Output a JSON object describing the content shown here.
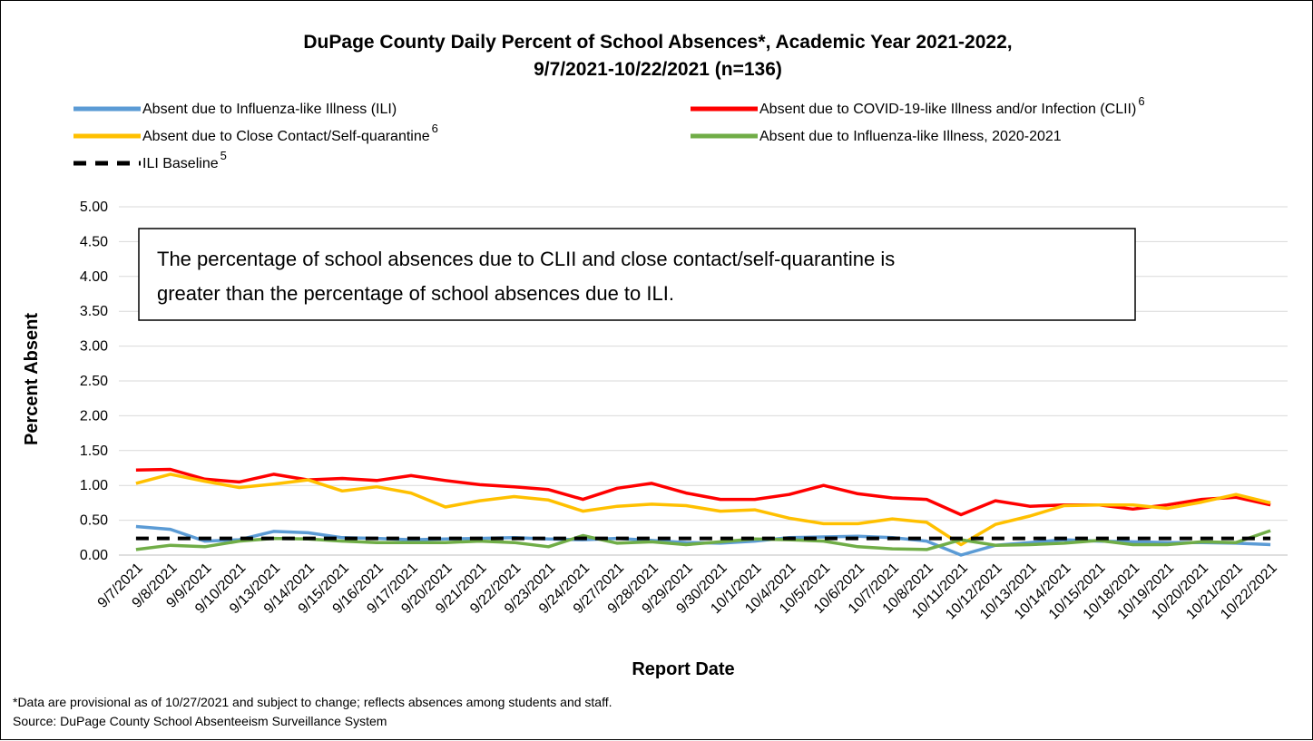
{
  "chart_data": {
    "type": "line",
    "title_line1": "DuPage County Daily Percent of School Absences*, Academic Year 2021-2022,",
    "title_line2": "9/7/2021-10/22/2021 (n=136)",
    "xlabel": "Report Date",
    "ylabel": "Percent Absent",
    "ylim": [
      0,
      5
    ],
    "yticks": [
      "0.00",
      "0.50",
      "1.00",
      "1.50",
      "2.00",
      "2.50",
      "3.00",
      "3.50",
      "4.00",
      "4.50",
      "5.00"
    ],
    "grid": true,
    "legend_position": "top",
    "categories": [
      "9/7/2021",
      "9/8/2021",
      "9/9/2021",
      "9/10/2021",
      "9/13/2021",
      "9/14/2021",
      "9/15/2021",
      "9/16/2021",
      "9/17/2021",
      "9/20/2021",
      "9/21/2021",
      "9/22/2021",
      "9/23/2021",
      "9/24/2021",
      "9/27/2021",
      "9/28/2021",
      "9/29/2021",
      "9/30/2021",
      "10/1/2021",
      "10/4/2021",
      "10/5/2021",
      "10/6/2021",
      "10/7/2021",
      "10/8/2021",
      "10/11/2021",
      "10/12/2021",
      "10/13/2021",
      "10/14/2021",
      "10/15/2021",
      "10/18/2021",
      "10/19/2021",
      "10/20/2021",
      "10/21/2021",
      "10/22/2021"
    ],
    "series": [
      {
        "name": "Absent due to Influenza-like Illness (ILI)",
        "sup": "",
        "color": "#5B9BD5",
        "dash": false,
        "values": [
          0.41,
          0.37,
          0.2,
          0.22,
          0.34,
          0.32,
          0.25,
          0.24,
          0.22,
          0.23,
          0.24,
          0.25,
          0.23,
          0.22,
          0.24,
          0.21,
          0.18,
          0.17,
          0.2,
          0.25,
          0.26,
          0.27,
          0.25,
          0.2,
          0.0,
          0.14,
          0.18,
          0.22,
          0.2,
          0.19,
          0.18,
          0.18,
          0.17,
          0.15
        ]
      },
      {
        "name": "Absent due to COVID-19-like Illness and/or Infection (CLII)",
        "sup": "6",
        "color": "#FF0000",
        "dash": false,
        "values": [
          1.22,
          1.23,
          1.09,
          1.05,
          1.16,
          1.08,
          1.1,
          1.07,
          1.14,
          1.07,
          1.01,
          0.98,
          0.94,
          0.8,
          0.96,
          1.03,
          0.89,
          0.8,
          0.8,
          0.87,
          1.0,
          0.88,
          0.82,
          0.8,
          0.58,
          0.78,
          0.7,
          0.72,
          0.72,
          0.66,
          0.72,
          0.8,
          0.83,
          0.72
        ]
      },
      {
        "name": "Absent due to Close Contact/Self-quarantine",
        "sup": "6",
        "color": "#FFC000",
        "dash": false,
        "values": [
          1.03,
          1.16,
          1.06,
          0.97,
          1.02,
          1.08,
          0.92,
          0.98,
          0.89,
          0.69,
          0.78,
          0.84,
          0.79,
          0.63,
          0.7,
          0.73,
          0.71,
          0.63,
          0.65,
          0.53,
          0.45,
          0.45,
          0.52,
          0.47,
          0.15,
          0.44,
          0.56,
          0.71,
          0.72,
          0.72,
          0.67,
          0.76,
          0.87,
          0.75
        ]
      },
      {
        "name": "Absent due to Influenza-like Illness, 2020-2021",
        "sup": "",
        "color": "#70AD47",
        "dash": false,
        "values": [
          0.08,
          0.14,
          0.12,
          0.2,
          0.24,
          0.23,
          0.2,
          0.18,
          0.18,
          0.18,
          0.2,
          0.18,
          0.12,
          0.28,
          0.17,
          0.19,
          0.15,
          0.19,
          0.23,
          0.22,
          0.2,
          0.12,
          0.09,
          0.08,
          0.22,
          0.14,
          0.15,
          0.17,
          0.21,
          0.15,
          0.15,
          0.19,
          0.18,
          0.35
        ]
      },
      {
        "name": "ILI Baseline",
        "sup": "5",
        "color": "#000000",
        "dash": true,
        "values": [
          0.24,
          0.24,
          0.24,
          0.24,
          0.24,
          0.24,
          0.24,
          0.24,
          0.24,
          0.24,
          0.24,
          0.24,
          0.24,
          0.24,
          0.24,
          0.24,
          0.24,
          0.24,
          0.24,
          0.24,
          0.24,
          0.24,
          0.24,
          0.24,
          0.24,
          0.24,
          0.24,
          0.24,
          0.24,
          0.24,
          0.24,
          0.24,
          0.24,
          0.24
        ]
      }
    ],
    "annotation_line1": "The percentage of school absences due to CLII and close contact/self-quarantine is",
    "annotation_line2": "greater than the percentage of school absences due to ILI."
  },
  "footnote_line1": "*Data are provisional as of 10/27/2021 and subject to change; reflects absences among students and staff.",
  "footnote_line2": "Source: DuPage County School Absenteeism Surveillance System"
}
